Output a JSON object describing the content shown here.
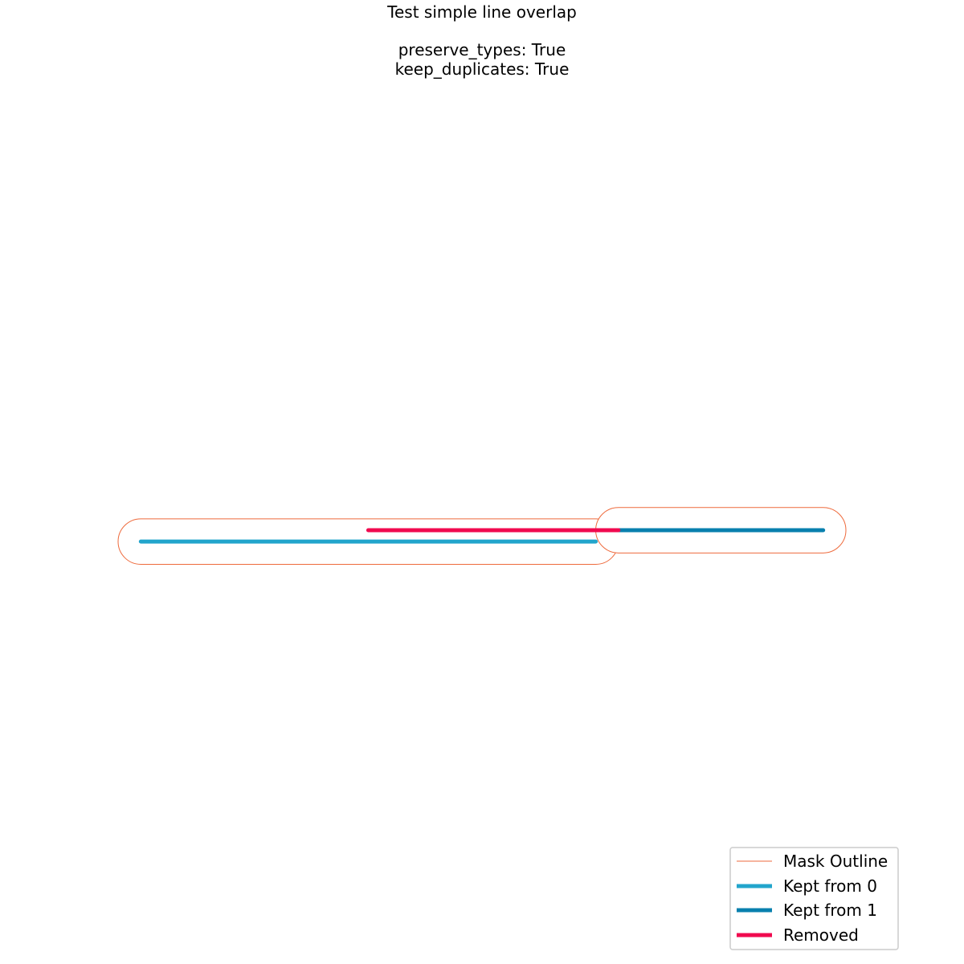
{
  "chart_data": {
    "type": "line",
    "title_lines": [
      "Test simple line overlap",
      "",
      "preserve_types: True",
      "keep_duplicates: True"
    ],
    "axes_visible": false,
    "xlim": [
      -0.1,
      3.1
    ],
    "ylim": [
      -1.5,
      1.5
    ],
    "series": [
      {
        "name": "Mask Outline",
        "color": "#EE6A3C",
        "style": "outline",
        "paths": [
          {
            "shape": "capsule",
            "x_start": 0,
            "x_end": 2,
            "y": -0.05,
            "half_width": 0.1
          },
          {
            "shape": "capsule",
            "x_start": 2.1,
            "x_end": 3,
            "y": 0,
            "half_width": 0.1
          }
        ]
      },
      {
        "name": "Kept from 0",
        "color": "#22A5CC",
        "segments": [
          {
            "x": [
              0,
              2
            ],
            "y": [
              -0.05,
              -0.05
            ]
          }
        ]
      },
      {
        "name": "Kept from 1",
        "color": "#0880AE",
        "segments": [
          {
            "x": [
              2.1,
              3
            ],
            "y": [
              0,
              0
            ]
          }
        ]
      },
      {
        "name": "Removed",
        "color": "#F00A4F",
        "segments": [
          {
            "x": [
              1,
              2.1
            ],
            "y": [
              0,
              0
            ]
          }
        ]
      }
    ],
    "legend": {
      "position": "lower-right",
      "entries": [
        "Mask Outline",
        "Kept from 0",
        "Kept from 1",
        "Removed"
      ]
    }
  }
}
